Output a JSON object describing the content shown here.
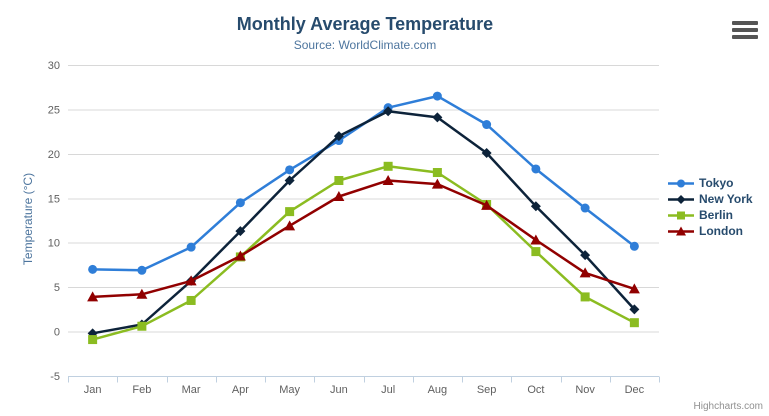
{
  "chart_data": {
    "type": "line",
    "title": "Monthly Average Temperature",
    "subtitle": "Source: WorldClimate.com",
    "xlabel": "",
    "ylabel": "Temperature (°C)",
    "categories": [
      "Jan",
      "Feb",
      "Mar",
      "Apr",
      "May",
      "Jun",
      "Jul",
      "Aug",
      "Sep",
      "Oct",
      "Nov",
      "Dec"
    ],
    "ylim": [
      -5,
      30
    ],
    "yticks": [
      -5,
      0,
      5,
      10,
      15,
      20,
      25,
      30
    ],
    "grid": true,
    "legend_position": "right",
    "series": [
      {
        "name": "Tokyo",
        "color": "#2f7ed8",
        "marker": "circle",
        "values": [
          7.0,
          6.9,
          9.5,
          14.5,
          18.2,
          21.5,
          25.2,
          26.5,
          23.3,
          18.3,
          13.9,
          9.6
        ]
      },
      {
        "name": "New York",
        "color": "#0d233a",
        "marker": "diamond",
        "values": [
          -0.2,
          0.8,
          5.7,
          11.3,
          17.0,
          22.0,
          24.8,
          24.1,
          20.1,
          14.1,
          8.6,
          2.5
        ]
      },
      {
        "name": "Berlin",
        "color": "#8bbc21",
        "marker": "square",
        "values": [
          -0.9,
          0.6,
          3.5,
          8.4,
          13.5,
          17.0,
          18.6,
          17.9,
          14.3,
          9.0,
          3.9,
          1.0
        ]
      },
      {
        "name": "London",
        "color": "#910000",
        "marker": "triangle",
        "values": [
          3.9,
          4.2,
          5.7,
          8.5,
          11.9,
          15.2,
          17.0,
          16.6,
          14.2,
          10.3,
          6.6,
          4.8
        ]
      }
    ]
  },
  "credits": "Highcharts.com",
  "icons": {
    "context_menu": "hamburger-icon"
  },
  "colors": {
    "title": "#274b6d",
    "subtitle": "#4d759e",
    "axis_title": "#4d759e",
    "tick_label": "#606060",
    "grid_line": "#d8d8d8",
    "axis_line": "#c0d0e0",
    "legend_text": "#274b6d",
    "credits": "#909090",
    "burger": "#555555"
  }
}
